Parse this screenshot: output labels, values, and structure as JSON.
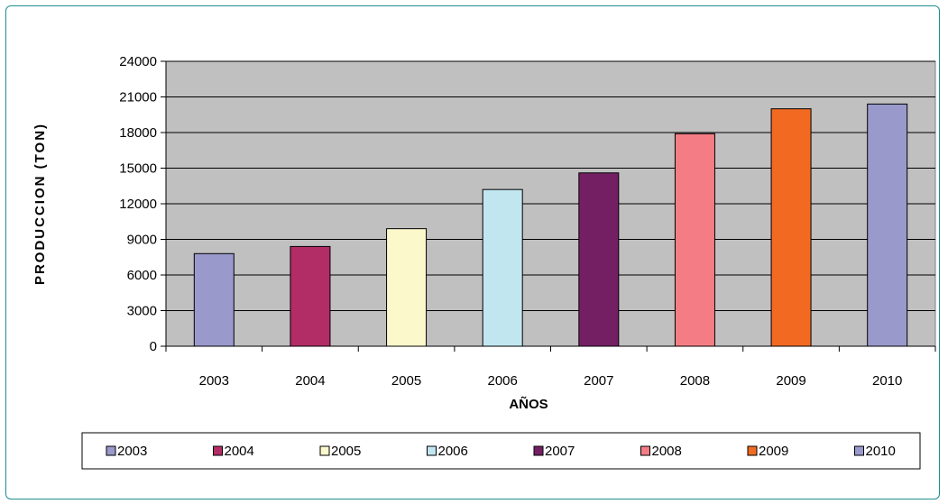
{
  "chart_data": {
    "type": "bar",
    "title": "",
    "xlabel": "AÑOS",
    "ylabel": "PRODUCCION (TON)",
    "categories": [
      "2003",
      "2004",
      "2005",
      "2006",
      "2007",
      "2008",
      "2009",
      "2010"
    ],
    "values": [
      7800,
      8400,
      9900,
      13200,
      14600,
      17900,
      20000,
      20400
    ],
    "ylim": [
      0,
      24000
    ],
    "yticks": [
      "0",
      "3000",
      "6000",
      "9000",
      "12000",
      "15000",
      "18000",
      "21000",
      "24000"
    ],
    "grid": true,
    "legend_position": "bottom",
    "legend": [
      "2003",
      "2004",
      "2005",
      "2006",
      "2007",
      "2008",
      "2009",
      "2010"
    ],
    "colors": [
      "#9999cc",
      "#b22d66",
      "#fbf8cc",
      "#c1e6ef",
      "#741f64",
      "#f47d85",
      "#f26a22",
      "#9999cc"
    ],
    "plot_background": "#c0c0c0"
  }
}
